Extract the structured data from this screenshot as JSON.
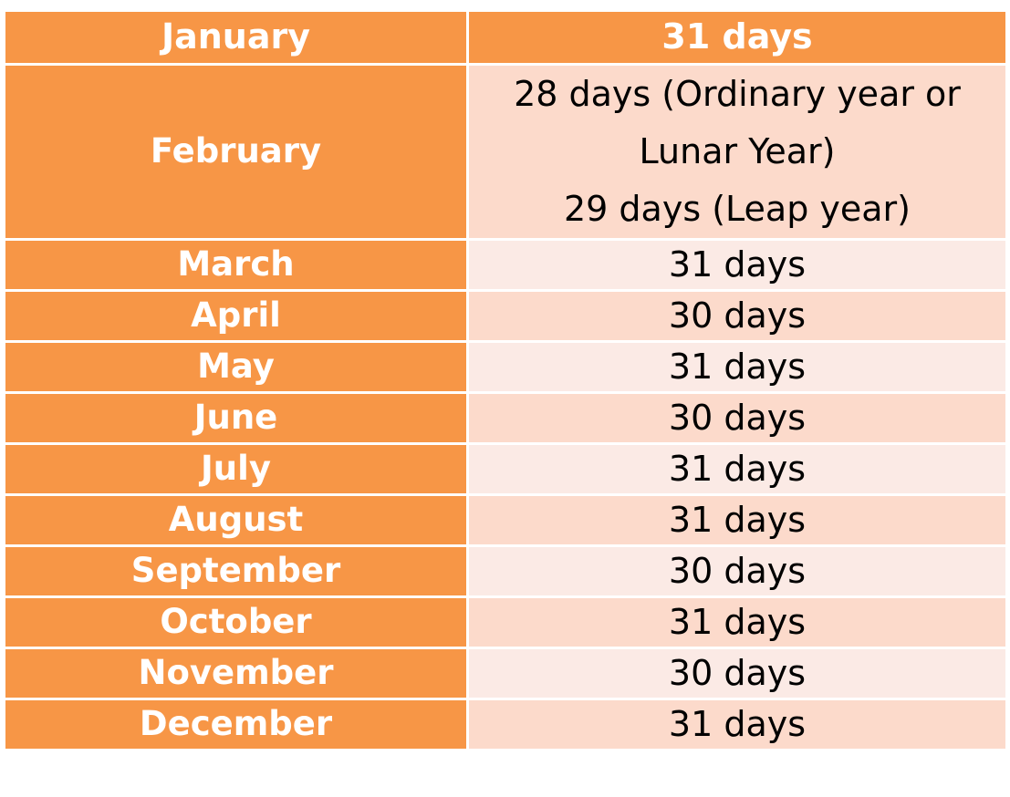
{
  "table": {
    "header": {
      "month": "January",
      "days": "31 days"
    },
    "february": {
      "month": "February",
      "lines": [
        "28 days (Ordinary year or",
        "Lunar Year)",
        "29 days (Leap year)"
      ]
    },
    "rows": [
      {
        "month": "March",
        "days": "31 days"
      },
      {
        "month": "April",
        "days": "30 days"
      },
      {
        "month": "May",
        "days": "31 days"
      },
      {
        "month": "June",
        "days": "30 days"
      },
      {
        "month": "July",
        "days": "31 days"
      },
      {
        "month": "August",
        "days": "31 days"
      },
      {
        "month": "September",
        "days": "30 days"
      },
      {
        "month": "October",
        "days": "31 days"
      },
      {
        "month": "November",
        "days": "30 days"
      },
      {
        "month": "December",
        "days": "31 days"
      }
    ]
  },
  "colors": {
    "month_column": "#f79646",
    "band_light": "#fbeae5",
    "band_dark": "#fcdacb",
    "border": "#ffffff"
  }
}
